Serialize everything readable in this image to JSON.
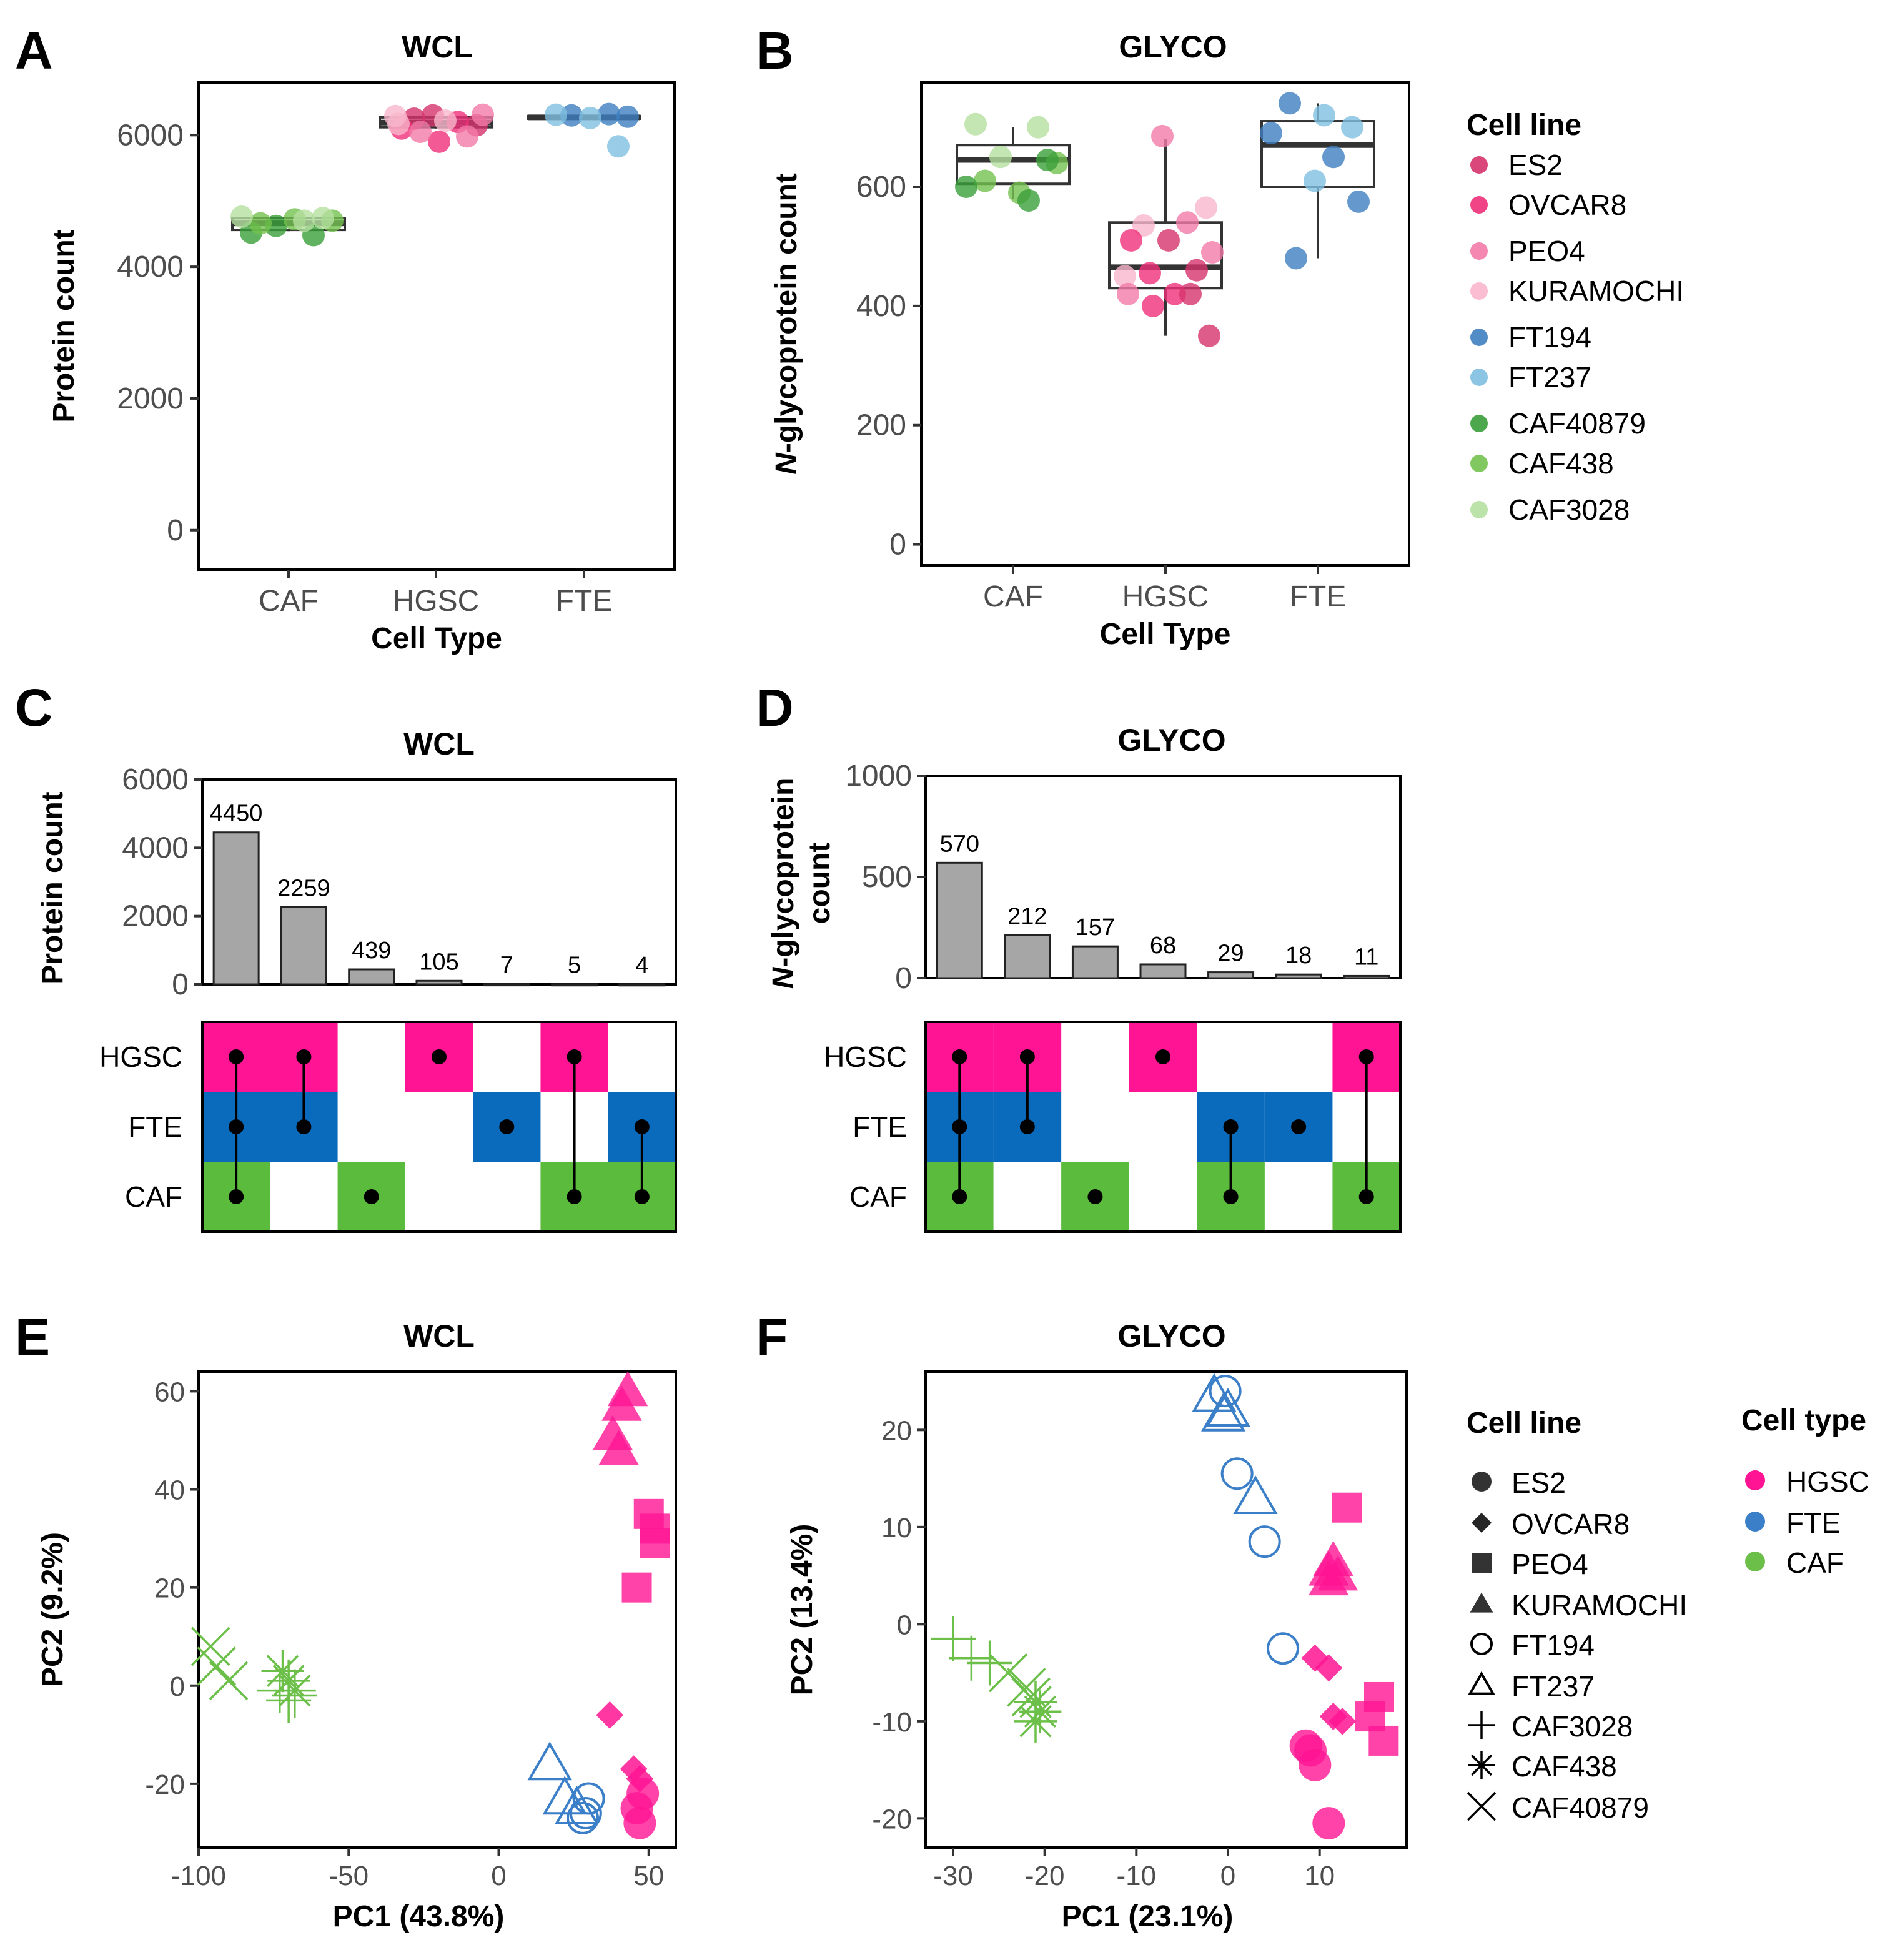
{
  "panel_labels": [
    "A",
    "B",
    "C",
    "D",
    "E",
    "F"
  ],
  "colors": {
    "ES2": "#d6336c",
    "OVCAR8": "#f0307a",
    "PEO4": "#f37ba7",
    "KURAMOCHI": "#f9b6cc",
    "FT194": "#3f7fc0",
    "FT237": "#7fbfe0",
    "CAF40879": "#3a9f3a",
    "CAF438": "#73c24f",
    "CAF3028": "#b5e0a0",
    "HGSC": "#ff1493",
    "FTE": "#0a6bbd",
    "CAF": "#5abb3c",
    "bar": "#a6a6a6"
  },
  "legend_cellline_box": {
    "title": "Cell line",
    "items": [
      "ES2",
      "OVCAR8",
      "PEO4",
      "KURAMOCHI",
      "FT194",
      "FT237",
      "CAF40879",
      "CAF438",
      "CAF3028"
    ]
  },
  "legend_pca": {
    "cellline_title": "Cell line",
    "celllines": [
      "ES2",
      "OVCAR8",
      "PEO4",
      "KURAMOCHI",
      "FT194",
      "FT237",
      "CAF3028",
      "CAF438",
      "CAF40879"
    ],
    "celltype_title": "Cell type",
    "celltypes": [
      "HGSC",
      "FTE",
      "CAF"
    ]
  },
  "chart_data": [
    {
      "id": "A",
      "type": "box",
      "title": "WCL",
      "xlabel": "Cell Type",
      "ylabel": "Protein count",
      "categories": [
        "CAF",
        "HGSC",
        "FTE"
      ],
      "ylim": [
        -600,
        6800
      ],
      "yticks": [
        0,
        2000,
        4000,
        6000
      ],
      "boxes": [
        {
          "q1": 4560,
          "median": 4660,
          "q3": 4740,
          "whisker_low": 4540,
          "whisker_high": 4760
        },
        {
          "q1": 6120,
          "median": 6190,
          "q3": 6270,
          "whisker_low": 6100,
          "whisker_high": 6290
        },
        {
          "q1": 6250,
          "median": 6270,
          "q3": 6290,
          "whisker_low": 6240,
          "whisker_high": 6300
        }
      ],
      "points": [
        {
          "cat": 0,
          "line": "CAF40879",
          "y": 4520
        },
        {
          "cat": 0,
          "line": "CAF40879",
          "y": 4480
        },
        {
          "cat": 0,
          "line": "CAF40879",
          "y": 4620
        },
        {
          "cat": 0,
          "line": "CAF438",
          "y": 4700
        },
        {
          "cat": 0,
          "line": "CAF438",
          "y": 4660
        },
        {
          "cat": 0,
          "line": "CAF438",
          "y": 4720
        },
        {
          "cat": 0,
          "line": "CAF3028",
          "y": 4740
        },
        {
          "cat": 0,
          "line": "CAF3028",
          "y": 4760
        },
        {
          "cat": 0,
          "line": "CAF3028",
          "y": 4700
        },
        {
          "cat": 1,
          "line": "ES2",
          "y": 6300
        },
        {
          "cat": 1,
          "line": "ES2",
          "y": 6150
        },
        {
          "cat": 1,
          "line": "ES2",
          "y": 6250
        },
        {
          "cat": 1,
          "line": "OVCAR8",
          "y": 6200
        },
        {
          "cat": 1,
          "line": "OVCAR8",
          "y": 6100
        },
        {
          "cat": 1,
          "line": "OVCAR8",
          "y": 5900
        },
        {
          "cat": 1,
          "line": "PEO4",
          "y": 6310
        },
        {
          "cat": 1,
          "line": "PEO4",
          "y": 6050
        },
        {
          "cat": 1,
          "line": "PEO4",
          "y": 5980
        },
        {
          "cat": 1,
          "line": "KURAMOCHI",
          "y": 6290
        },
        {
          "cat": 1,
          "line": "KURAMOCHI",
          "y": 6220
        },
        {
          "cat": 1,
          "line": "KURAMOCHI",
          "y": 6170
        },
        {
          "cat": 2,
          "line": "FT194",
          "y": 6320
        },
        {
          "cat": 2,
          "line": "FT194",
          "y": 6300
        },
        {
          "cat": 2,
          "line": "FT194",
          "y": 6280
        },
        {
          "cat": 2,
          "line": "FT237",
          "y": 6310
        },
        {
          "cat": 2,
          "line": "FT237",
          "y": 6260
        },
        {
          "cat": 2,
          "line": "FT237",
          "y": 5830
        }
      ]
    },
    {
      "id": "B",
      "type": "box",
      "title": "GLYCO",
      "xlabel": "Cell Type",
      "ylabel": "N-glycoprotein count",
      "categories": [
        "CAF",
        "HGSC",
        "FTE"
      ],
      "ylim": [
        -35,
        775
      ],
      "yticks": [
        0,
        200,
        400,
        600
      ],
      "boxes": [
        {
          "q1": 605,
          "median": 645,
          "q3": 670,
          "whisker_low": 580,
          "whisker_high": 700
        },
        {
          "q1": 430,
          "median": 465,
          "q3": 540,
          "whisker_low": 350,
          "whisker_high": 680
        },
        {
          "q1": 600,
          "median": 670,
          "q3": 710,
          "whisker_low": 480,
          "whisker_high": 740
        }
      ],
      "points": [
        {
          "cat": 0,
          "line": "CAF3028",
          "y": 705
        },
        {
          "cat": 0,
          "line": "CAF3028",
          "y": 700
        },
        {
          "cat": 0,
          "line": "CAF3028",
          "y": 650
        },
        {
          "cat": 0,
          "line": "CAF438",
          "y": 640
        },
        {
          "cat": 0,
          "line": "CAF438",
          "y": 610
        },
        {
          "cat": 0,
          "line": "CAF438",
          "y": 590
        },
        {
          "cat": 0,
          "line": "CAF40879",
          "y": 645
        },
        {
          "cat": 0,
          "line": "CAF40879",
          "y": 600
        },
        {
          "cat": 0,
          "line": "CAF40879",
          "y": 577
        },
        {
          "cat": 1,
          "line": "PEO4",
          "y": 685
        },
        {
          "cat": 1,
          "line": "KURAMOCHI",
          "y": 565
        },
        {
          "cat": 1,
          "line": "KURAMOCHI",
          "y": 535
        },
        {
          "cat": 1,
          "line": "PEO4",
          "y": 540
        },
        {
          "cat": 1,
          "line": "OVCAR8",
          "y": 510
        },
        {
          "cat": 1,
          "line": "ES2",
          "y": 510
        },
        {
          "cat": 1,
          "line": "PEO4",
          "y": 490
        },
        {
          "cat": 1,
          "line": "OVCAR8",
          "y": 455
        },
        {
          "cat": 1,
          "line": "ES2",
          "y": 460
        },
        {
          "cat": 1,
          "line": "KURAMOCHI",
          "y": 450
        },
        {
          "cat": 1,
          "line": "OVCAR8",
          "y": 420
        },
        {
          "cat": 1,
          "line": "PEO4",
          "y": 420
        },
        {
          "cat": 1,
          "line": "ES2",
          "y": 420
        },
        {
          "cat": 1,
          "line": "OVCAR8",
          "y": 400
        },
        {
          "cat": 1,
          "line": "ES2",
          "y": 350
        },
        {
          "cat": 2,
          "line": "FT194",
          "y": 740
        },
        {
          "cat": 2,
          "line": "FT237",
          "y": 720
        },
        {
          "cat": 2,
          "line": "FT237",
          "y": 700
        },
        {
          "cat": 2,
          "line": "FT194",
          "y": 690
        },
        {
          "cat": 2,
          "line": "FT194",
          "y": 650
        },
        {
          "cat": 2,
          "line": "FT237",
          "y": 610
        },
        {
          "cat": 2,
          "line": "FT194",
          "y": 575
        },
        {
          "cat": 2,
          "line": "FT194",
          "y": 480
        }
      ]
    },
    {
      "id": "C",
      "type": "upset",
      "title": "WCL",
      "ylabel": "Protein count",
      "ylim": [
        0,
        6000
      ],
      "yticks": [
        0,
        2000,
        4000,
        6000
      ],
      "values": [
        4450,
        2259,
        439,
        105,
        7,
        5,
        4
      ],
      "labels": [
        "4450",
        "2259",
        "439",
        "105",
        "7",
        "5",
        "4"
      ],
      "sets": [
        "HGSC",
        "FTE",
        "CAF"
      ],
      "membership": [
        [
          1,
          1,
          1
        ],
        [
          1,
          1,
          0
        ],
        [
          0,
          0,
          1
        ],
        [
          1,
          0,
          0
        ],
        [
          0,
          1,
          0
        ],
        [
          1,
          0,
          1
        ],
        [
          0,
          1,
          1
        ]
      ]
    },
    {
      "id": "D",
      "type": "upset",
      "title": "GLYCO",
      "ylabel": "N-glycoprotein count",
      "ylim": [
        0,
        1000
      ],
      "yticks": [
        0,
        500,
        1000
      ],
      "values": [
        570,
        212,
        157,
        68,
        29,
        18,
        11
      ],
      "labels": [
        "570",
        "212",
        "157",
        "68",
        "29",
        "18",
        "11"
      ],
      "sets": [
        "HGSC",
        "FTE",
        "CAF"
      ],
      "membership": [
        [
          1,
          1,
          1
        ],
        [
          1,
          1,
          0
        ],
        [
          0,
          0,
          1
        ],
        [
          1,
          0,
          0
        ],
        [
          0,
          1,
          1
        ],
        [
          0,
          1,
          0
        ],
        [
          1,
          0,
          1
        ]
      ]
    },
    {
      "id": "E",
      "type": "scatter",
      "title": "WCL",
      "xlabel": "PC1 (43.8%)",
      "ylabel": "PC2 (9.2%)",
      "xlim": [
        -100,
        59
      ],
      "ylim": [
        -33,
        64
      ],
      "xticks": [
        -100,
        -50,
        0,
        50
      ],
      "yticks": [
        -20,
        0,
        20,
        40,
        60
      ],
      "points": [
        {
          "x": 41,
          "y": 57,
          "line": "KURAMOCHI"
        },
        {
          "x": 43,
          "y": 60,
          "line": "KURAMOCHI"
        },
        {
          "x": 38,
          "y": 51,
          "line": "KURAMOCHI"
        },
        {
          "x": 40,
          "y": 48,
          "line": "KURAMOCHI"
        },
        {
          "x": 50,
          "y": 35,
          "line": "PEO4"
        },
        {
          "x": 52,
          "y": 32,
          "line": "PEO4"
        },
        {
          "x": 52,
          "y": 29,
          "line": "PEO4"
        },
        {
          "x": 46,
          "y": 20,
          "line": "PEO4"
        },
        {
          "x": 37,
          "y": -6,
          "line": "OVCAR8"
        },
        {
          "x": 45,
          "y": -17,
          "line": "OVCAR8"
        },
        {
          "x": 47,
          "y": -19,
          "line": "OVCAR8"
        },
        {
          "x": 48,
          "y": -22,
          "line": "ES2"
        },
        {
          "x": 46,
          "y": -25,
          "line": "ES2"
        },
        {
          "x": 47,
          "y": -28,
          "line": "ES2"
        },
        {
          "x": 17,
          "y": -16,
          "line": "FT237"
        },
        {
          "x": 22,
          "y": -23,
          "line": "FT237"
        },
        {
          "x": 26,
          "y": -25,
          "line": "FT237"
        },
        {
          "x": 30,
          "y": -23,
          "line": "FT194"
        },
        {
          "x": 29,
          "y": -26,
          "line": "FT194"
        },
        {
          "x": 28,
          "y": -27,
          "line": "FT194"
        },
        {
          "x": -96,
          "y": 8,
          "line": "CAF40879"
        },
        {
          "x": -94,
          "y": 4,
          "line": "CAF40879"
        },
        {
          "x": -90,
          "y": 1,
          "line": "CAF40879"
        },
        {
          "x": -72,
          "y": 3,
          "line": "CAF438"
        },
        {
          "x": -70,
          "y": 1,
          "line": "CAF438"
        },
        {
          "x": -68,
          "y": -1,
          "line": "CAF438"
        },
        {
          "x": -73,
          "y": -1,
          "line": "CAF3028"
        },
        {
          "x": -70,
          "y": -3,
          "line": "CAF3028"
        },
        {
          "x": -68,
          "y": -2,
          "line": "CAF3028"
        }
      ]
    },
    {
      "id": "F",
      "type": "scatter",
      "title": "GLYCO",
      "xlabel": "PC1 (23.1%)",
      "ylabel": "PC2 (13.4%)",
      "xlim": [
        -33,
        19.5
      ],
      "ylim": [
        -23,
        26
      ],
      "xticks": [
        -30,
        -20,
        -10,
        0,
        10
      ],
      "yticks": [
        -20,
        -10,
        0,
        10,
        20
      ],
      "points": [
        {
          "x": -1.5,
          "y": 23.5,
          "line": "FT237"
        },
        {
          "x": 0,
          "y": 22,
          "line": "FT237"
        },
        {
          "x": -0.5,
          "y": 21.5,
          "line": "FT237"
        },
        {
          "x": 3,
          "y": 13,
          "line": "FT237"
        },
        {
          "x": -0.3,
          "y": 24,
          "line": "FT194"
        },
        {
          "x": 1,
          "y": 15.5,
          "line": "FT194"
        },
        {
          "x": 4,
          "y": 8.5,
          "line": "FT194"
        },
        {
          "x": 6,
          "y": -2.5,
          "line": "FT194"
        },
        {
          "x": 13,
          "y": 12,
          "line": "PEO4"
        },
        {
          "x": 16.5,
          "y": -7.5,
          "line": "PEO4"
        },
        {
          "x": 15.5,
          "y": -9.5,
          "line": "PEO4"
        },
        {
          "x": 17,
          "y": -12,
          "line": "PEO4"
        },
        {
          "x": 11.5,
          "y": 6.5,
          "line": "KURAMOCHI"
        },
        {
          "x": 11,
          "y": 5.5,
          "line": "KURAMOCHI"
        },
        {
          "x": 12,
          "y": 5,
          "line": "KURAMOCHI"
        },
        {
          "x": 11,
          "y": 4.5,
          "line": "KURAMOCHI"
        },
        {
          "x": 9.5,
          "y": -3.5,
          "line": "OVCAR8"
        },
        {
          "x": 11,
          "y": -4.5,
          "line": "OVCAR8"
        },
        {
          "x": 12.5,
          "y": -10,
          "line": "OVCAR8"
        },
        {
          "x": 11.5,
          "y": -9.5,
          "line": "OVCAR8"
        },
        {
          "x": 8.5,
          "y": -12.5,
          "line": "ES2"
        },
        {
          "x": 9,
          "y": -13,
          "line": "ES2"
        },
        {
          "x": 9.5,
          "y": -14.5,
          "line": "ES2"
        },
        {
          "x": 11,
          "y": -20.5,
          "line": "ES2"
        },
        {
          "x": -30,
          "y": -1.5,
          "line": "CAF3028"
        },
        {
          "x": -28,
          "y": -3.5,
          "line": "CAF3028"
        },
        {
          "x": -26,
          "y": -4,
          "line": "CAF3028"
        },
        {
          "x": -24,
          "y": -5,
          "line": "CAF40879"
        },
        {
          "x": -22,
          "y": -6.5,
          "line": "CAF40879"
        },
        {
          "x": -21.5,
          "y": -7.5,
          "line": "CAF40879"
        },
        {
          "x": -21,
          "y": -8,
          "line": "CAF438"
        },
        {
          "x": -20.5,
          "y": -9,
          "line": "CAF438"
        },
        {
          "x": -21,
          "y": -10,
          "line": "CAF438"
        }
      ]
    }
  ]
}
